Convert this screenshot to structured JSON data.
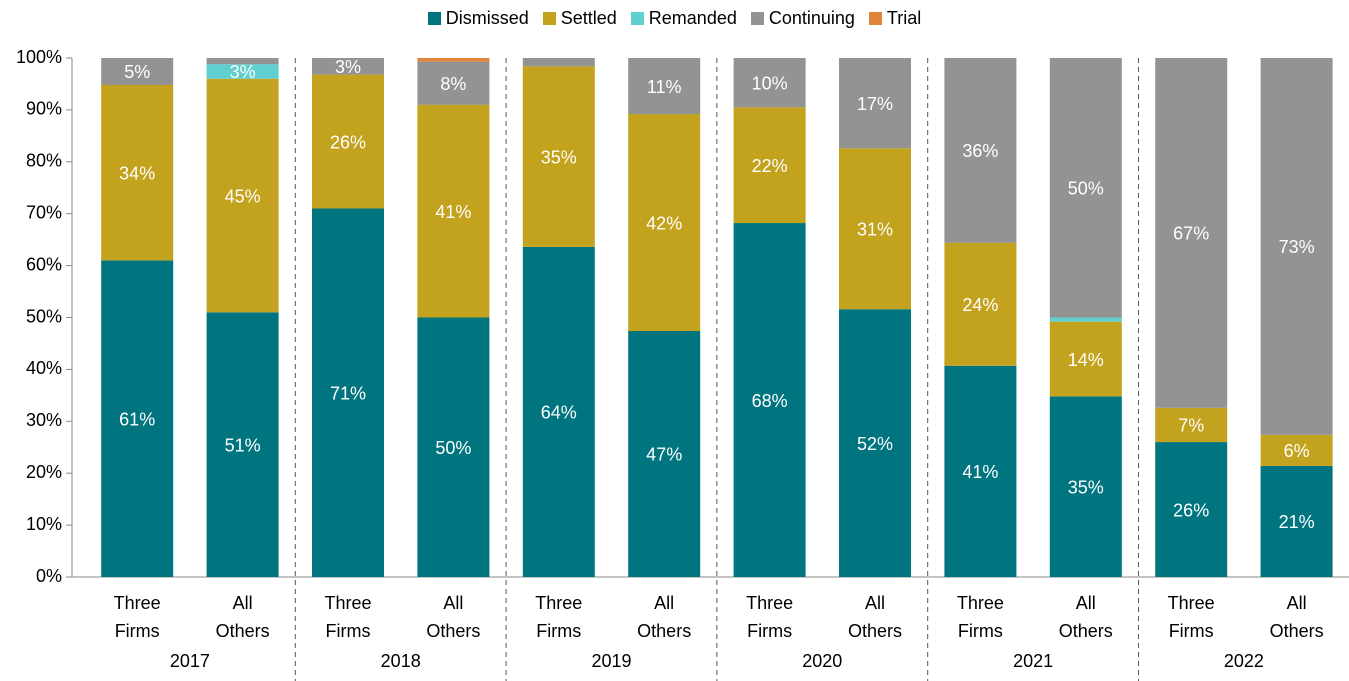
{
  "chart_data": {
    "type": "stacked_bar",
    "categories": [
      "Three Firms",
      "All Others",
      "Three Firms",
      "All Others",
      "Three Firms",
      "All Others",
      "Three Firms",
      "All Others",
      "Three Firms",
      "All Others",
      "Three Firms",
      "All Others"
    ],
    "groups": [
      "2017",
      "2018",
      "2019",
      "2020",
      "2021",
      "2022"
    ],
    "series": [
      {
        "name": "Dismissed",
        "color": "#00757f",
        "values": [
          61,
          51,
          71,
          50,
          63.6,
          47.4,
          68.2,
          51.6,
          40.7,
          34.8,
          26,
          21.4
        ],
        "value_labels": [
          "61%",
          "51%",
          "71%",
          "50%",
          "64%",
          "47%",
          "68%",
          "52%",
          "41%",
          "35%",
          "26%",
          "21%"
        ]
      },
      {
        "name": "Settled",
        "color": "#c3a21e",
        "values": [
          33.8,
          45,
          25.8,
          41,
          34.8,
          41.8,
          22.3,
          31,
          23.7,
          14.4,
          6.6,
          6
        ],
        "value_labels": [
          "34%",
          "45%",
          "26%",
          "41%",
          "35%",
          "42%",
          "22%",
          "31%",
          "24%",
          "14%",
          "7%",
          "6%"
        ]
      },
      {
        "name": "Remanded",
        "color": "#5fcfcf",
        "values": [
          0,
          2.8,
          0,
          0,
          0,
          0,
          0,
          0,
          0,
          0.8,
          0,
          0
        ],
        "value_labels": [
          null,
          "3%",
          null,
          null,
          null,
          null,
          null,
          null,
          null,
          null,
          null,
          null
        ]
      },
      {
        "name": "Continuing",
        "color": "#939393",
        "values": [
          5.2,
          1.2,
          3.2,
          8.3,
          1.6,
          10.8,
          9.5,
          17.4,
          35.6,
          50,
          67.4,
          72.6
        ],
        "value_labels": [
          "5%",
          null,
          "3%",
          "8%",
          null,
          "11%",
          "10%",
          "17%",
          "36%",
          "50%",
          "67%",
          "73%"
        ]
      },
      {
        "name": "Trial",
        "color": "#e0843a",
        "values": [
          0,
          0,
          0,
          0.7,
          0,
          0,
          0,
          0,
          0,
          0,
          0,
          0
        ],
        "value_labels": [
          null,
          null,
          null,
          null,
          null,
          null,
          null,
          null,
          null,
          null,
          null,
          null
        ]
      }
    ],
    "ylim": [
      0,
      100
    ],
    "yticks": [
      {
        "value": 0,
        "label": "0%"
      },
      {
        "value": 10,
        "label": "10%"
      },
      {
        "value": 20,
        "label": "20%"
      },
      {
        "value": 30,
        "label": "30%"
      },
      {
        "value": 40,
        "label": "40%"
      },
      {
        "value": 50,
        "label": "50%"
      },
      {
        "value": 60,
        "label": "60%"
      },
      {
        "value": 70,
        "label": "70%"
      },
      {
        "value": 80,
        "label": "80%"
      },
      {
        "value": 90,
        "label": "90%"
      },
      {
        "value": 100,
        "label": "100%"
      }
    ]
  }
}
